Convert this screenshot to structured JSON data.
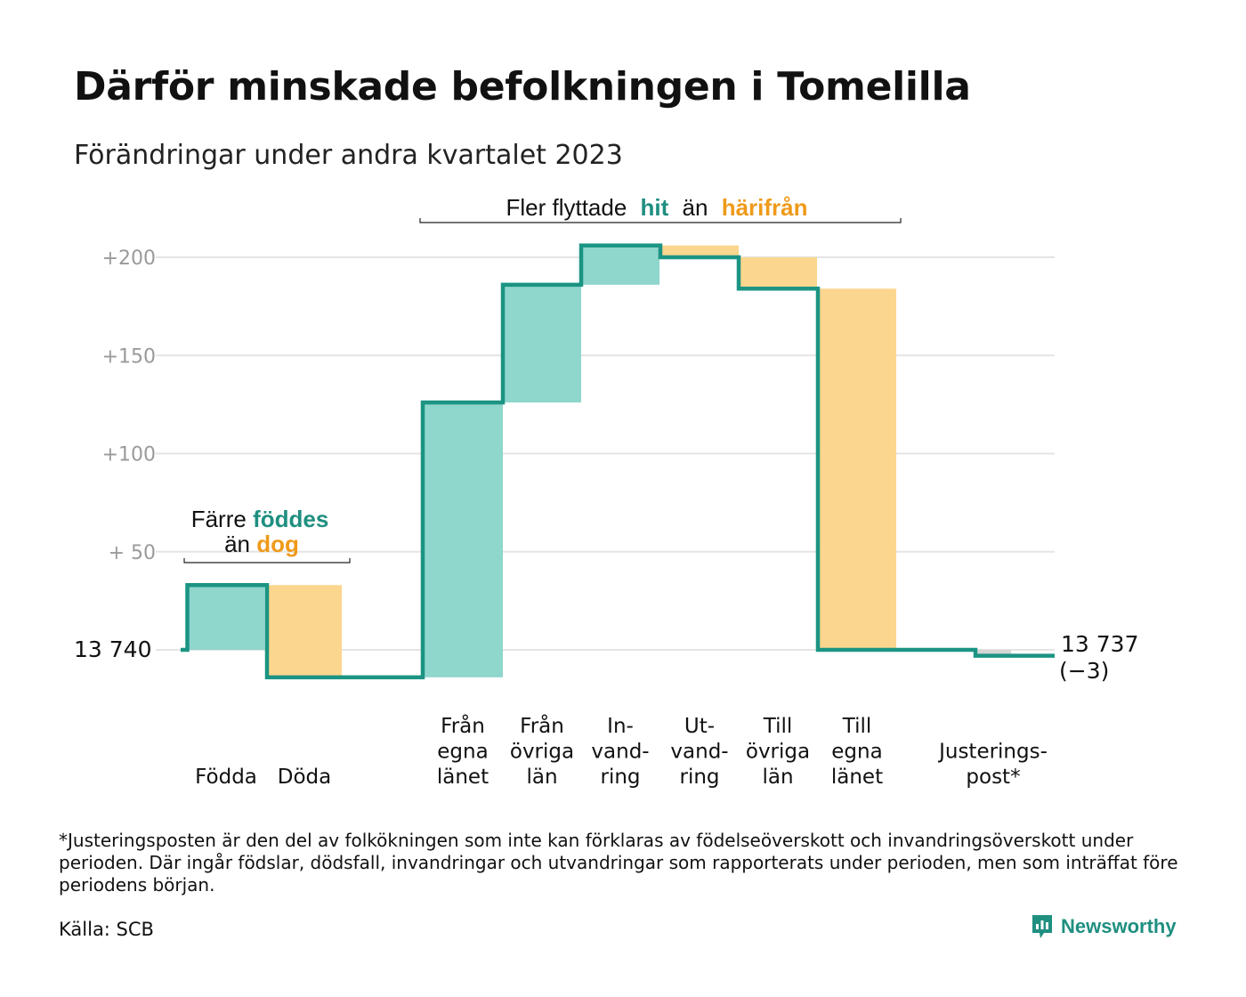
{
  "title": "Därför minskade befolkningen i Tomelilla",
  "subtitle": "Förändringar under andra kvartalet 2023",
  "annotations": {
    "birth": {
      "line1": "Färre",
      "hl1": "föddes",
      "line2": "än",
      "hl2": "dog"
    },
    "moves": {
      "pre": "Fler flyttade",
      "hl1": "hit",
      "mid": "än",
      "hl2": "härifrån"
    }
  },
  "colors": {
    "positive": "#8fd6cc",
    "negative": "#fbd68e",
    "line": "#1b9483",
    "adjust": "#d6d6d6",
    "accent_teal": "#1f8f80",
    "accent_orange": "#ef9a1a",
    "grid": "#e4e4e4",
    "tick": "#9a9a9a"
  },
  "start_label": "13  740",
  "end_label": {
    "value": "13 737",
    "change": "(−3)"
  },
  "footnote": "*Justeringsposten är den del av folkökningen som inte kan förklaras av födelseöverskott och invandringsöverskott under perioden. Där ingår födslar, dödsfall, invandringar och utvandringar som rapporterats under perioden, men som inträffat före periodens början.",
  "source": "Källa: SCB",
  "brand": "Newsworthy",
  "chart_data": {
    "type": "waterfall",
    "start_value": 13740,
    "end_value": 13737,
    "y_ticks": [
      {
        "value": 200,
        "label": "+200"
      },
      {
        "value": 150,
        "label": "+150"
      },
      {
        "value": 100,
        "label": "+100"
      },
      {
        "value": 50,
        "label": "+  50"
      },
      {
        "value": 0,
        "label": ""
      }
    ],
    "ylim": [
      -22,
      210
    ],
    "steps": [
      {
        "label": [
          "Födda"
        ],
        "change": 33,
        "from": 0,
        "to": 33
      },
      {
        "label": [
          "Döda"
        ],
        "change": -47,
        "from": 33,
        "to": -14
      },
      {
        "label": [
          "Från",
          "egna",
          "länet"
        ],
        "change": 140,
        "from": -14,
        "to": 126
      },
      {
        "label": [
          "Från",
          "övriga",
          "län"
        ],
        "change": 60,
        "from": 126,
        "to": 186
      },
      {
        "label": [
          "In-",
          "vand-",
          "ring"
        ],
        "change": 20,
        "from": 186,
        "to": 206
      },
      {
        "label": [
          "Ut-",
          "vand-",
          "ring"
        ],
        "change": -6,
        "from": 206,
        "to": 200
      },
      {
        "label": [
          "Till",
          "övriga",
          "län"
        ],
        "change": -16,
        "from": 200,
        "to": 184
      },
      {
        "label": [
          "Till",
          "egna",
          "länet"
        ],
        "change": -184,
        "from": 184,
        "to": 0
      },
      {
        "label": [
          "Justerings-",
          "post*"
        ],
        "change": -3,
        "from": 0,
        "to": -3
      }
    ]
  }
}
